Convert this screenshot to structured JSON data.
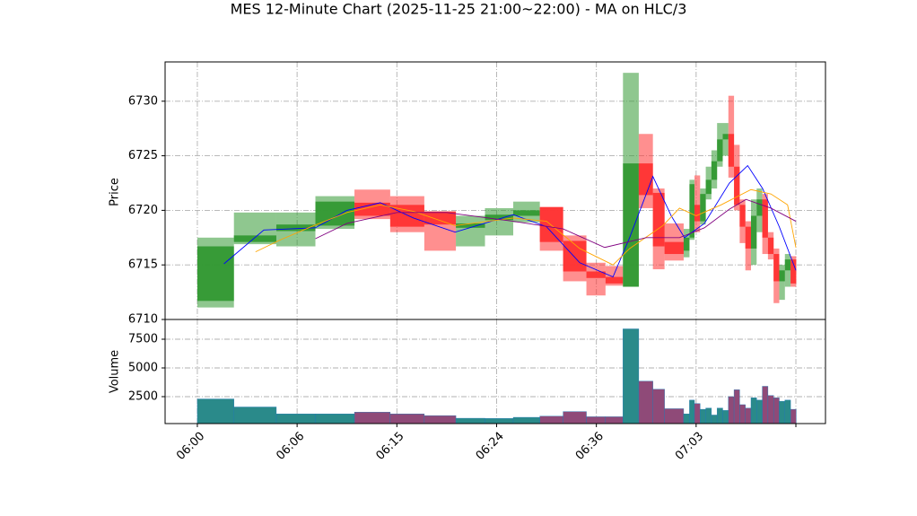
{
  "chart_data": {
    "type": "candlestick",
    "title": "MES 12-Minute Chart (2025-11-25 21:00~22:00) - MA on HLC/3",
    "ylabel": "Price",
    "volume_label": "Volume",
    "up_color": "#339933",
    "down_color": "#ff3333",
    "volume_up_color": "#2a8a8a",
    "volume_down_color": "#8f4a78",
    "grid": true,
    "xlim": [
      -1.94,
      37.78
    ],
    "xticks": [
      {
        "value": 0,
        "label": "06:00"
      },
      {
        "value": 6,
        "label": "06:06"
      },
      {
        "value": 12,
        "label": "06:15"
      },
      {
        "value": 18,
        "label": "06:24"
      },
      {
        "value": 24,
        "label": "06:36"
      },
      {
        "value": 30,
        "label": "07:03"
      },
      {
        "value": 36,
        "label": null
      }
    ],
    "ylim": [
      6710,
      6733.6
    ],
    "yticks": [
      6710,
      6715,
      6720,
      6725,
      6730
    ],
    "vol_ylim": [
      156,
      9220
    ],
    "vol_yticks": [
      2500,
      5000,
      7500
    ],
    "x": [
      0,
      2.2,
      4.75,
      7.1,
      9.45,
      11.6,
      13.65,
      15.55,
      17.3,
      19,
      20.6,
      22,
      23.4,
      24.55,
      25.6,
      26.55,
      27.4,
      28.1,
      29.25,
      29.6,
      29.9,
      30.24,
      30.58,
      30.92,
      31.26,
      31.6,
      31.94,
      32.28,
      32.62,
      32.96,
      33.3,
      33.64,
      33.98,
      34.32,
      34.66,
      35,
      35.34,
      35.68
    ],
    "x2": [
      2.2,
      4.75,
      7.1,
      9.45,
      11.6,
      13.65,
      15.55,
      17.3,
      19,
      20.6,
      22,
      23.4,
      24.55,
      25.6,
      26.55,
      27.4,
      28.1,
      29.25,
      29.6,
      29.9,
      30.24,
      30.58,
      30.92,
      31.26,
      31.6,
      31.94,
      32.28,
      32.62,
      32.96,
      33.3,
      33.64,
      33.98,
      34.32,
      34.66,
      35,
      35.34,
      35.68,
      36.02
    ],
    "open": [
      6711.7,
      6717.1,
      6718.1,
      6718.6,
      6720.7,
      6720.5,
      6719.9,
      6718.4,
      6719.1,
      6719.5,
      6720.3,
      6717.2,
      6714.4,
      6713.9,
      6713.0,
      6724.3,
      6721.6,
      6717.1,
      6716.3,
      6717.5,
      6720.5,
      6719.0,
      6721.5,
      6722.8,
      6724.5,
      6726.5,
      6727.0,
      6724.0,
      6720.5,
      6718.5,
      6716.5,
      6719.5,
      6721.0,
      6717.5,
      6716.0,
      6713.5,
      6714.5,
      6715.5
    ],
    "high": [
      6717.5,
      6719.8,
      6719.8,
      6721.3,
      6721.9,
      6721.3,
      6719.9,
      6719.5,
      6720.2,
      6720.8,
      6720.3,
      6717.7,
      6715.2,
      6714.9,
      6732.6,
      6727.0,
      6722.0,
      6718.8,
      6718.3,
      6722.8,
      6723.2,
      6722.0,
      6724.0,
      6725.5,
      6728.0,
      6728.0,
      6730.5,
      6726.0,
      6721.0,
      6719.0,
      6721.0,
      6722.0,
      6721.5,
      6718.0,
      6716.5,
      6715.0,
      6716.0,
      6715.8
    ],
    "low": [
      6711.1,
      6716.9,
      6716.7,
      6718.3,
      6719.2,
      6718.0,
      6716.3,
      6716.7,
      6717.7,
      6718.9,
      6716.3,
      6713.5,
      6712.2,
      6713.1,
      6713.0,
      6720.2,
      6714.6,
      6715.4,
      6715.7,
      6717.3,
      6718.0,
      6718.7,
      6721.0,
      6722.0,
      6724.0,
      6725.0,
      6723.0,
      6720.0,
      6717.0,
      6714.5,
      6715.0,
      6718.0,
      6716.0,
      6715.5,
      6711.5,
      6711.8,
      6713.0,
      6713.0
    ],
    "close": [
      6716.7,
      6717.7,
      6718.7,
      6720.8,
      6719.5,
      6718.5,
      6718.7,
      6718.8,
      6719.6,
      6720.0,
      6717.1,
      6714.4,
      6713.8,
      6713.3,
      6724.3,
      6721.4,
      6716.7,
      6716.0,
      6717.5,
      6722.4,
      6719.0,
      6721.5,
      6722.8,
      6724.5,
      6726.5,
      6727.0,
      6724.0,
      6720.5,
      6718.5,
      6716.5,
      6719.5,
      6721.0,
      6717.5,
      6716.0,
      6713.5,
      6714.5,
      6715.5,
      6713.3
    ],
    "volume": [
      2300,
      1600,
      1000,
      1000,
      1150,
      1000,
      850,
      620,
      600,
      700,
      800,
      1200,
      750,
      750,
      8400,
      3850,
      3150,
      1450,
      1000,
      2200,
      1900,
      1400,
      1500,
      900,
      1500,
      1300,
      2500,
      3100,
      1800,
      1500,
      2400,
      2200,
      3400,
      2600,
      2400,
      2100,
      2200,
      1400
    ],
    "ma": [
      {
        "color": "#0000ff",
        "x": [
          1.6,
          4,
          7.1,
          9,
          11,
          13,
          15.5,
          19,
          21,
          23,
          25,
          26,
          27.4,
          28.5,
          29.3,
          30.5,
          32,
          33.1,
          34,
          35,
          36
        ],
        "values": [
          6715.1,
          6718.2,
          6718.4,
          6720.0,
          6720.7,
          6719.3,
          6718.0,
          6719.6,
          6718.5,
          6715.2,
          6713.9,
          6717.5,
          6723.1,
          6719.5,
          6717.5,
          6718.8,
          6722.5,
          6724.1,
          6722.0,
          6718.5,
          6714.5
        ]
      },
      {
        "color": "#ffa500",
        "x": [
          3.5,
          5,
          7,
          9,
          11,
          13,
          15.5,
          19,
          21,
          23,
          25,
          26,
          28,
          29,
          30,
          31.5,
          33.3,
          34.5,
          35.5,
          36
        ],
        "values": [
          6716.2,
          6717.3,
          6718.6,
          6719.8,
          6720.5,
          6719.9,
          6718.6,
          6719.3,
          6719.0,
          6716.5,
          6715.0,
          6716.5,
          6718.6,
          6720.2,
          6719.5,
          6720.5,
          6721.9,
          6721.5,
          6720.5,
          6716.6
        ]
      },
      {
        "color": "#800080",
        "x": [
          7.1,
          9,
          12,
          15,
          19,
          22,
          24.5,
          27,
          29,
          30.5,
          32,
          33,
          34.5,
          36
        ],
        "values": [
          6717.4,
          6718.8,
          6719.8,
          6719.8,
          6719.0,
          6718.3,
          6716.6,
          6717.5,
          6717.5,
          6718.4,
          6720.1,
          6721.0,
          6720.2,
          6719.0
        ]
      }
    ]
  }
}
